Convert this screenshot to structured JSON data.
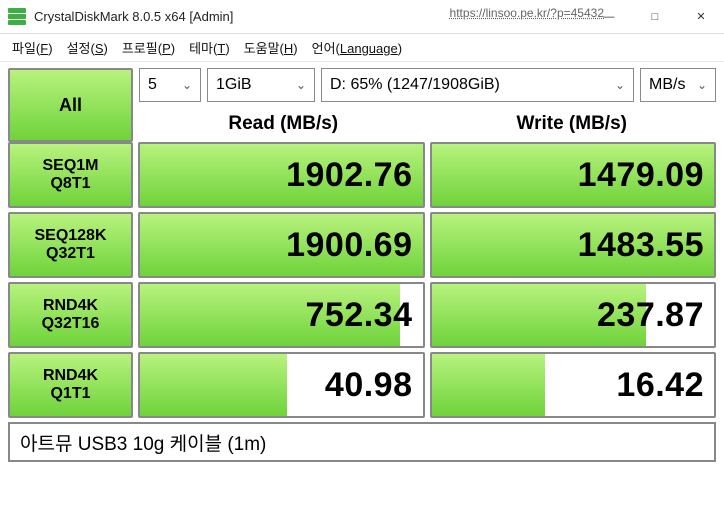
{
  "window": {
    "title": "CrystalDiskMark 8.0.5 x64 [Admin]",
    "watermark": "https://linsoo.pe.kr/?p=45432"
  },
  "menu": {
    "file": {
      "label": "파일",
      "hotkey": "F"
    },
    "settings": {
      "label": "설정",
      "hotkey": "S"
    },
    "profile": {
      "label": "프로필",
      "hotkey": "P"
    },
    "theme": {
      "label": "테마",
      "hotkey": "T"
    },
    "help": {
      "label": "도움말",
      "hotkey": "H"
    },
    "language": {
      "label": "언어",
      "hotkey": "Language"
    }
  },
  "controls": {
    "all_label": "All",
    "count": "5",
    "size": "1GiB",
    "drive": "D: 65% (1247/1908GiB)",
    "unit": "MB/s"
  },
  "headers": {
    "read": "Read (MB/s)",
    "write": "Write (MB/s)"
  },
  "tests": [
    {
      "line1": "SEQ1M",
      "line2": "Q8T1",
      "read": "1902.76",
      "read_pct": 100,
      "write": "1479.09",
      "write_pct": 100
    },
    {
      "line1": "SEQ128K",
      "line2": "Q32T1",
      "read": "1900.69",
      "read_pct": 100,
      "write": "1483.55",
      "write_pct": 100
    },
    {
      "line1": "RND4K",
      "line2": "Q32T16",
      "read": "752.34",
      "read_pct": 92,
      "write": "237.87",
      "write_pct": 76
    },
    {
      "line1": "RND4K",
      "line2": "Q1T1",
      "read": "40.98",
      "read_pct": 52,
      "write": "16.42",
      "write_pct": 40
    }
  ],
  "footer": "아트뮤 USB3 10g 케이블 (1m)",
  "colors": {
    "accent_gradient_top": "#b8f27e",
    "accent_gradient_bottom": "#6fd33b",
    "border": "#888888",
    "text": "#000000",
    "background": "#ffffff"
  }
}
